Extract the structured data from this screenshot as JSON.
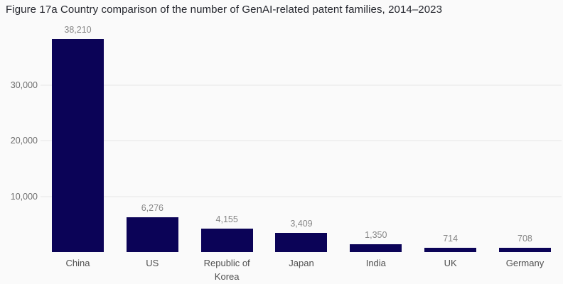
{
  "title": "Figure 17a Country comparison of the number of GenAI-related patent families, 2014–2023",
  "chart_data": {
    "type": "bar",
    "title": "Figure 17a Country comparison of the number of GenAI-related patent families, 2014–2023",
    "categories": [
      "China",
      "US",
      "Republic of Korea",
      "Japan",
      "India",
      "UK",
      "Germany"
    ],
    "values": [
      38210,
      6276,
      4155,
      3409,
      1350,
      714,
      708
    ],
    "value_labels": [
      "38,210",
      "6,276",
      "4,155",
      "3,409",
      "1,350",
      "714",
      "708"
    ],
    "xlabel": "",
    "ylabel": "",
    "ylim": [
      0,
      40000
    ],
    "yticks": [
      {
        "value": 10000,
        "label": "10,000"
      },
      {
        "value": 20000,
        "label": "20,000"
      },
      {
        "value": 30000,
        "label": "30,000"
      }
    ],
    "grid": true,
    "legend": "none",
    "colors": {
      "background": "#fafafa",
      "bar": "#0b0357",
      "gridline": "#f0f0f0",
      "title_text": "#24262d",
      "value_label_text": "#868686",
      "y_tick_text": "#6e6e6e",
      "category_text": "#4f4f4f"
    }
  }
}
